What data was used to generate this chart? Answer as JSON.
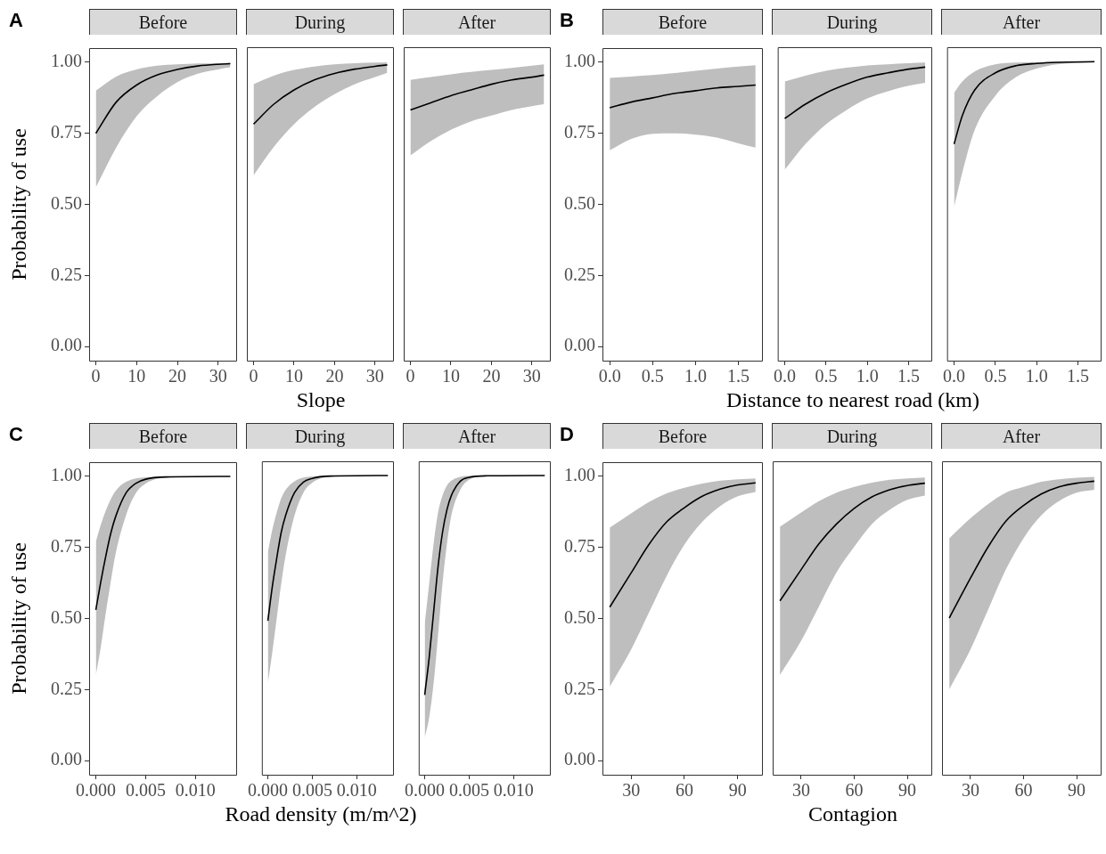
{
  "chart_data": [
    {
      "type": "line",
      "title": "Before",
      "ylabel": "Probability of use",
      "annotations": [
        "A"
      ],
      "xlim": [
        -1.65,
        34.65
      ],
      "xticks": [
        0,
        10,
        20,
        30
      ],
      "ylim": [
        -0.05,
        1.05
      ],
      "yticks": [
        {
          "value": 0,
          "label": "0.00"
        },
        {
          "value": 0.25,
          "label": "0.25"
        },
        {
          "value": 0.5,
          "label": "0.50"
        },
        {
          "value": 0.75,
          "label": "0.75"
        },
        {
          "value": 1,
          "label": "1.00"
        }
      ],
      "series": [
        {
          "color": "#000000",
          "x": [
            0,
            5,
            10,
            15,
            20,
            25,
            30,
            33
          ],
          "values": [
            0.75,
            0.86,
            0.92,
            0.955,
            0.975,
            0.987,
            0.993,
            0.995
          ],
          "lower": [
            0.56,
            0.7,
            0.81,
            0.88,
            0.93,
            0.96,
            0.975,
            0.983
          ],
          "upper": [
            0.9,
            0.95,
            0.975,
            0.988,
            0.993,
            0.996,
            0.997,
            0.998
          ]
        }
      ]
    },
    {
      "type": "line",
      "title": "During",
      "xlabel": "Slope",
      "tick_labels": "x",
      "xlim": [
        -1.65,
        34.65
      ],
      "xticks": [
        0,
        10,
        20,
        30
      ],
      "ylim": [
        -0.05,
        1.05
      ],
      "series": [
        {
          "color": "#000000",
          "x": [
            0,
            5,
            10,
            15,
            20,
            25,
            30,
            33
          ],
          "values": [
            0.78,
            0.85,
            0.9,
            0.935,
            0.958,
            0.973,
            0.983,
            0.988
          ],
          "lower": [
            0.6,
            0.7,
            0.78,
            0.84,
            0.885,
            0.92,
            0.945,
            0.96
          ],
          "upper": [
            0.92,
            0.95,
            0.97,
            0.982,
            0.99,
            0.994,
            0.996,
            0.997
          ]
        }
      ]
    },
    {
      "type": "line",
      "title": "After",
      "tick_labels": "x",
      "xlim": [
        -1.65,
        34.65
      ],
      "xticks": [
        0,
        10,
        20,
        30
      ],
      "ylim": [
        -0.05,
        1.05
      ],
      "series": [
        {
          "color": "#000000",
          "x": [
            0,
            5,
            10,
            15,
            20,
            25,
            30,
            33
          ],
          "values": [
            0.83,
            0.855,
            0.88,
            0.9,
            0.92,
            0.935,
            0.945,
            0.952
          ],
          "lower": [
            0.67,
            0.72,
            0.76,
            0.79,
            0.81,
            0.83,
            0.843,
            0.85
          ],
          "upper": [
            0.935,
            0.945,
            0.955,
            0.963,
            0.97,
            0.977,
            0.985,
            0.99
          ]
        }
      ]
    },
    {
      "type": "line",
      "title": "Before",
      "annotations": [
        "B"
      ],
      "xlim": [
        -0.085,
        1.785
      ],
      "xticks": [
        {
          "value": 0,
          "label": "0.0"
        },
        {
          "value": 0.5,
          "label": "0.5"
        },
        {
          "value": 1,
          "label": "1.0"
        },
        {
          "value": 1.5,
          "label": "1.5"
        }
      ],
      "ylim": [
        -0.05,
        1.05
      ],
      "yticks": [
        {
          "value": 0,
          "label": "0.00"
        },
        {
          "value": 0.25,
          "label": "0.25"
        },
        {
          "value": 0.5,
          "label": "0.50"
        },
        {
          "value": 0.75,
          "label": "0.75"
        },
        {
          "value": 1,
          "label": "1.00"
        }
      ],
      "series": [
        {
          "color": "#000000",
          "x": [
            0,
            0.25,
            0.5,
            0.75,
            1,
            1.25,
            1.5,
            1.7
          ],
          "values": [
            0.84,
            0.86,
            0.875,
            0.89,
            0.9,
            0.91,
            0.915,
            0.92
          ],
          "lower": [
            0.69,
            0.73,
            0.748,
            0.75,
            0.745,
            0.735,
            0.715,
            0.7
          ],
          "upper": [
            0.945,
            0.95,
            0.955,
            0.962,
            0.97,
            0.978,
            0.985,
            0.99
          ]
        }
      ]
    },
    {
      "type": "line",
      "title": "During",
      "xlabel": "Distance to nearest road (km)",
      "tick_labels": "x",
      "xlim": [
        -0.085,
        1.785
      ],
      "xticks": [
        {
          "value": 0,
          "label": "0.0"
        },
        {
          "value": 0.5,
          "label": "0.5"
        },
        {
          "value": 1,
          "label": "1.0"
        },
        {
          "value": 1.5,
          "label": "1.5"
        }
      ],
      "ylim": [
        -0.05,
        1.05
      ],
      "series": [
        {
          "color": "#000000",
          "x": [
            0,
            0.25,
            0.5,
            0.75,
            1,
            1.25,
            1.5,
            1.7
          ],
          "values": [
            0.8,
            0.85,
            0.89,
            0.92,
            0.945,
            0.96,
            0.973,
            0.98
          ],
          "lower": [
            0.62,
            0.71,
            0.78,
            0.83,
            0.87,
            0.895,
            0.915,
            0.925
          ],
          "upper": [
            0.93,
            0.95,
            0.967,
            0.978,
            0.986,
            0.99,
            0.994,
            0.996
          ]
        }
      ]
    },
    {
      "type": "line",
      "title": "After",
      "tick_labels": "x",
      "xlim": [
        -0.085,
        1.785
      ],
      "xticks": [
        {
          "value": 0,
          "label": "0.0"
        },
        {
          "value": 0.5,
          "label": "0.5"
        },
        {
          "value": 1,
          "label": "1.0"
        },
        {
          "value": 1.5,
          "label": "1.5"
        }
      ],
      "ylim": [
        -0.05,
        1.05
      ],
      "series": [
        {
          "color": "#000000",
          "x": [
            0,
            0.1,
            0.25,
            0.5,
            0.75,
            1,
            1.25,
            1.7
          ],
          "values": [
            0.71,
            0.81,
            0.9,
            0.96,
            0.985,
            0.993,
            0.997,
            0.999
          ],
          "lower": [
            0.49,
            0.61,
            0.76,
            0.88,
            0.945,
            0.975,
            0.99,
            0.997
          ],
          "upper": [
            0.89,
            0.93,
            0.965,
            0.99,
            0.996,
            0.998,
            0.999,
            1
          ]
        }
      ]
    },
    {
      "type": "line",
      "title": "Before",
      "ylabel": "Probability of use",
      "annotations": [
        "C"
      ],
      "xlim": [
        -0.000675,
        0.014175
      ],
      "xticks": [
        {
          "value": 0,
          "label": "0.000"
        },
        {
          "value": 0.005,
          "label": "0.005"
        },
        {
          "value": 0.01,
          "label": "0.010"
        }
      ],
      "ylim": [
        -0.05,
        1.05
      ],
      "yticks": [
        {
          "value": 0,
          "label": "0.00"
        },
        {
          "value": 0.25,
          "label": "0.25"
        },
        {
          "value": 0.5,
          "label": "0.50"
        },
        {
          "value": 0.75,
          "label": "0.75"
        },
        {
          "value": 1,
          "label": "1.00"
        }
      ],
      "series": [
        {
          "color": "#000000",
          "x": [
            0,
            0.0005,
            0.001,
            0.0015,
            0.002,
            0.003,
            0.004,
            0.005,
            0.007,
            0.0135
          ],
          "values": [
            0.53,
            0.63,
            0.72,
            0.8,
            0.86,
            0.94,
            0.975,
            0.99,
            0.998,
            1
          ],
          "lower": [
            0.3,
            0.4,
            0.52,
            0.63,
            0.73,
            0.86,
            0.94,
            0.975,
            0.995,
            1
          ],
          "upper": [
            0.77,
            0.83,
            0.88,
            0.92,
            0.95,
            0.98,
            0.993,
            0.997,
            1,
            1
          ]
        }
      ]
    },
    {
      "type": "line",
      "title": "During",
      "xlabel": "Road density (m/m^2)",
      "tick_labels": "x",
      "xlim": [
        -0.000675,
        0.014175
      ],
      "xticks": [
        {
          "value": 0,
          "label": "0.000"
        },
        {
          "value": 0.005,
          "label": "0.005"
        },
        {
          "value": 0.01,
          "label": "0.010"
        }
      ],
      "ylim": [
        -0.05,
        1.05
      ],
      "series": [
        {
          "color": "#000000",
          "x": [
            0,
            0.0005,
            0.001,
            0.0015,
            0.002,
            0.003,
            0.004,
            0.005,
            0.007,
            0.0135
          ],
          "values": [
            0.49,
            0.61,
            0.71,
            0.8,
            0.86,
            0.94,
            0.977,
            0.99,
            0.998,
            1
          ],
          "lower": [
            0.27,
            0.38,
            0.5,
            0.62,
            0.72,
            0.86,
            0.94,
            0.975,
            0.995,
            1
          ],
          "upper": [
            0.73,
            0.81,
            0.87,
            0.92,
            0.95,
            0.98,
            0.993,
            0.997,
            1,
            1
          ]
        }
      ]
    },
    {
      "type": "line",
      "title": "After",
      "tick_labels": "x",
      "xlim": [
        -0.000675,
        0.014175
      ],
      "xticks": [
        {
          "value": 0,
          "label": "0.000"
        },
        {
          "value": 0.005,
          "label": "0.005"
        },
        {
          "value": 0.01,
          "label": "0.010"
        }
      ],
      "ylim": [
        -0.05,
        1.05
      ],
      "series": [
        {
          "color": "#000000",
          "x": [
            0,
            0.0005,
            0.001,
            0.0015,
            0.002,
            0.0025,
            0.003,
            0.004,
            0.005,
            0.007,
            0.0135
          ],
          "values": [
            0.23,
            0.36,
            0.52,
            0.68,
            0.8,
            0.88,
            0.93,
            0.98,
            0.994,
            0.999,
            1
          ],
          "lower": [
            0.08,
            0.15,
            0.27,
            0.44,
            0.62,
            0.76,
            0.86,
            0.95,
            0.985,
            0.998,
            1
          ],
          "upper": [
            0.48,
            0.62,
            0.76,
            0.87,
            0.93,
            0.965,
            0.982,
            0.995,
            0.999,
            1,
            1
          ]
        }
      ]
    },
    {
      "type": "line",
      "title": "Before",
      "annotations": [
        "D"
      ],
      "xlim": [
        13.9,
        104.1
      ],
      "xticks": [
        30,
        60,
        90
      ],
      "ylim": [
        -0.05,
        1.05
      ],
      "yticks": [
        {
          "value": 0,
          "label": "0.00"
        },
        {
          "value": 0.25,
          "label": "0.25"
        },
        {
          "value": 0.5,
          "label": "0.50"
        },
        {
          "value": 0.75,
          "label": "0.75"
        },
        {
          "value": 1,
          "label": "1.00"
        }
      ],
      "series": [
        {
          "color": "#000000",
          "x": [
            18,
            30,
            40,
            50,
            60,
            70,
            80,
            90,
            100
          ],
          "values": [
            0.54,
            0.66,
            0.76,
            0.84,
            0.89,
            0.93,
            0.955,
            0.97,
            0.977
          ],
          "lower": [
            0.26,
            0.39,
            0.52,
            0.65,
            0.76,
            0.84,
            0.895,
            0.93,
            0.945
          ],
          "upper": [
            0.82,
            0.87,
            0.91,
            0.94,
            0.96,
            0.975,
            0.985,
            0.99,
            0.993
          ]
        }
      ]
    },
    {
      "type": "line",
      "title": "During",
      "xlabel": "Contagion",
      "tick_labels": "x",
      "xlim": [
        13.9,
        104.1
      ],
      "xticks": [
        30,
        60,
        90
      ],
      "ylim": [
        -0.05,
        1.05
      ],
      "series": [
        {
          "color": "#000000",
          "x": [
            18,
            30,
            40,
            50,
            60,
            70,
            80,
            90,
            100
          ],
          "values": [
            0.56,
            0.67,
            0.76,
            0.83,
            0.885,
            0.925,
            0.95,
            0.965,
            0.973
          ],
          "lower": [
            0.3,
            0.42,
            0.54,
            0.66,
            0.75,
            0.83,
            0.88,
            0.915,
            0.93
          ],
          "upper": [
            0.82,
            0.87,
            0.91,
            0.94,
            0.96,
            0.975,
            0.985,
            0.99,
            0.993
          ]
        }
      ]
    },
    {
      "type": "line",
      "title": "After",
      "tick_labels": "x",
      "xlim": [
        13.9,
        104.1
      ],
      "xticks": [
        30,
        60,
        90
      ],
      "ylim": [
        -0.05,
        1.05
      ],
      "series": [
        {
          "color": "#000000",
          "x": [
            18,
            30,
            40,
            50,
            60,
            70,
            80,
            90,
            100
          ],
          "values": [
            0.5,
            0.64,
            0.75,
            0.84,
            0.895,
            0.935,
            0.96,
            0.973,
            0.98
          ],
          "lower": [
            0.25,
            0.39,
            0.53,
            0.67,
            0.78,
            0.86,
            0.91,
            0.94,
            0.95
          ],
          "upper": [
            0.78,
            0.85,
            0.9,
            0.94,
            0.96,
            0.978,
            0.987,
            0.992,
            0.995
          ]
        }
      ]
    }
  ]
}
